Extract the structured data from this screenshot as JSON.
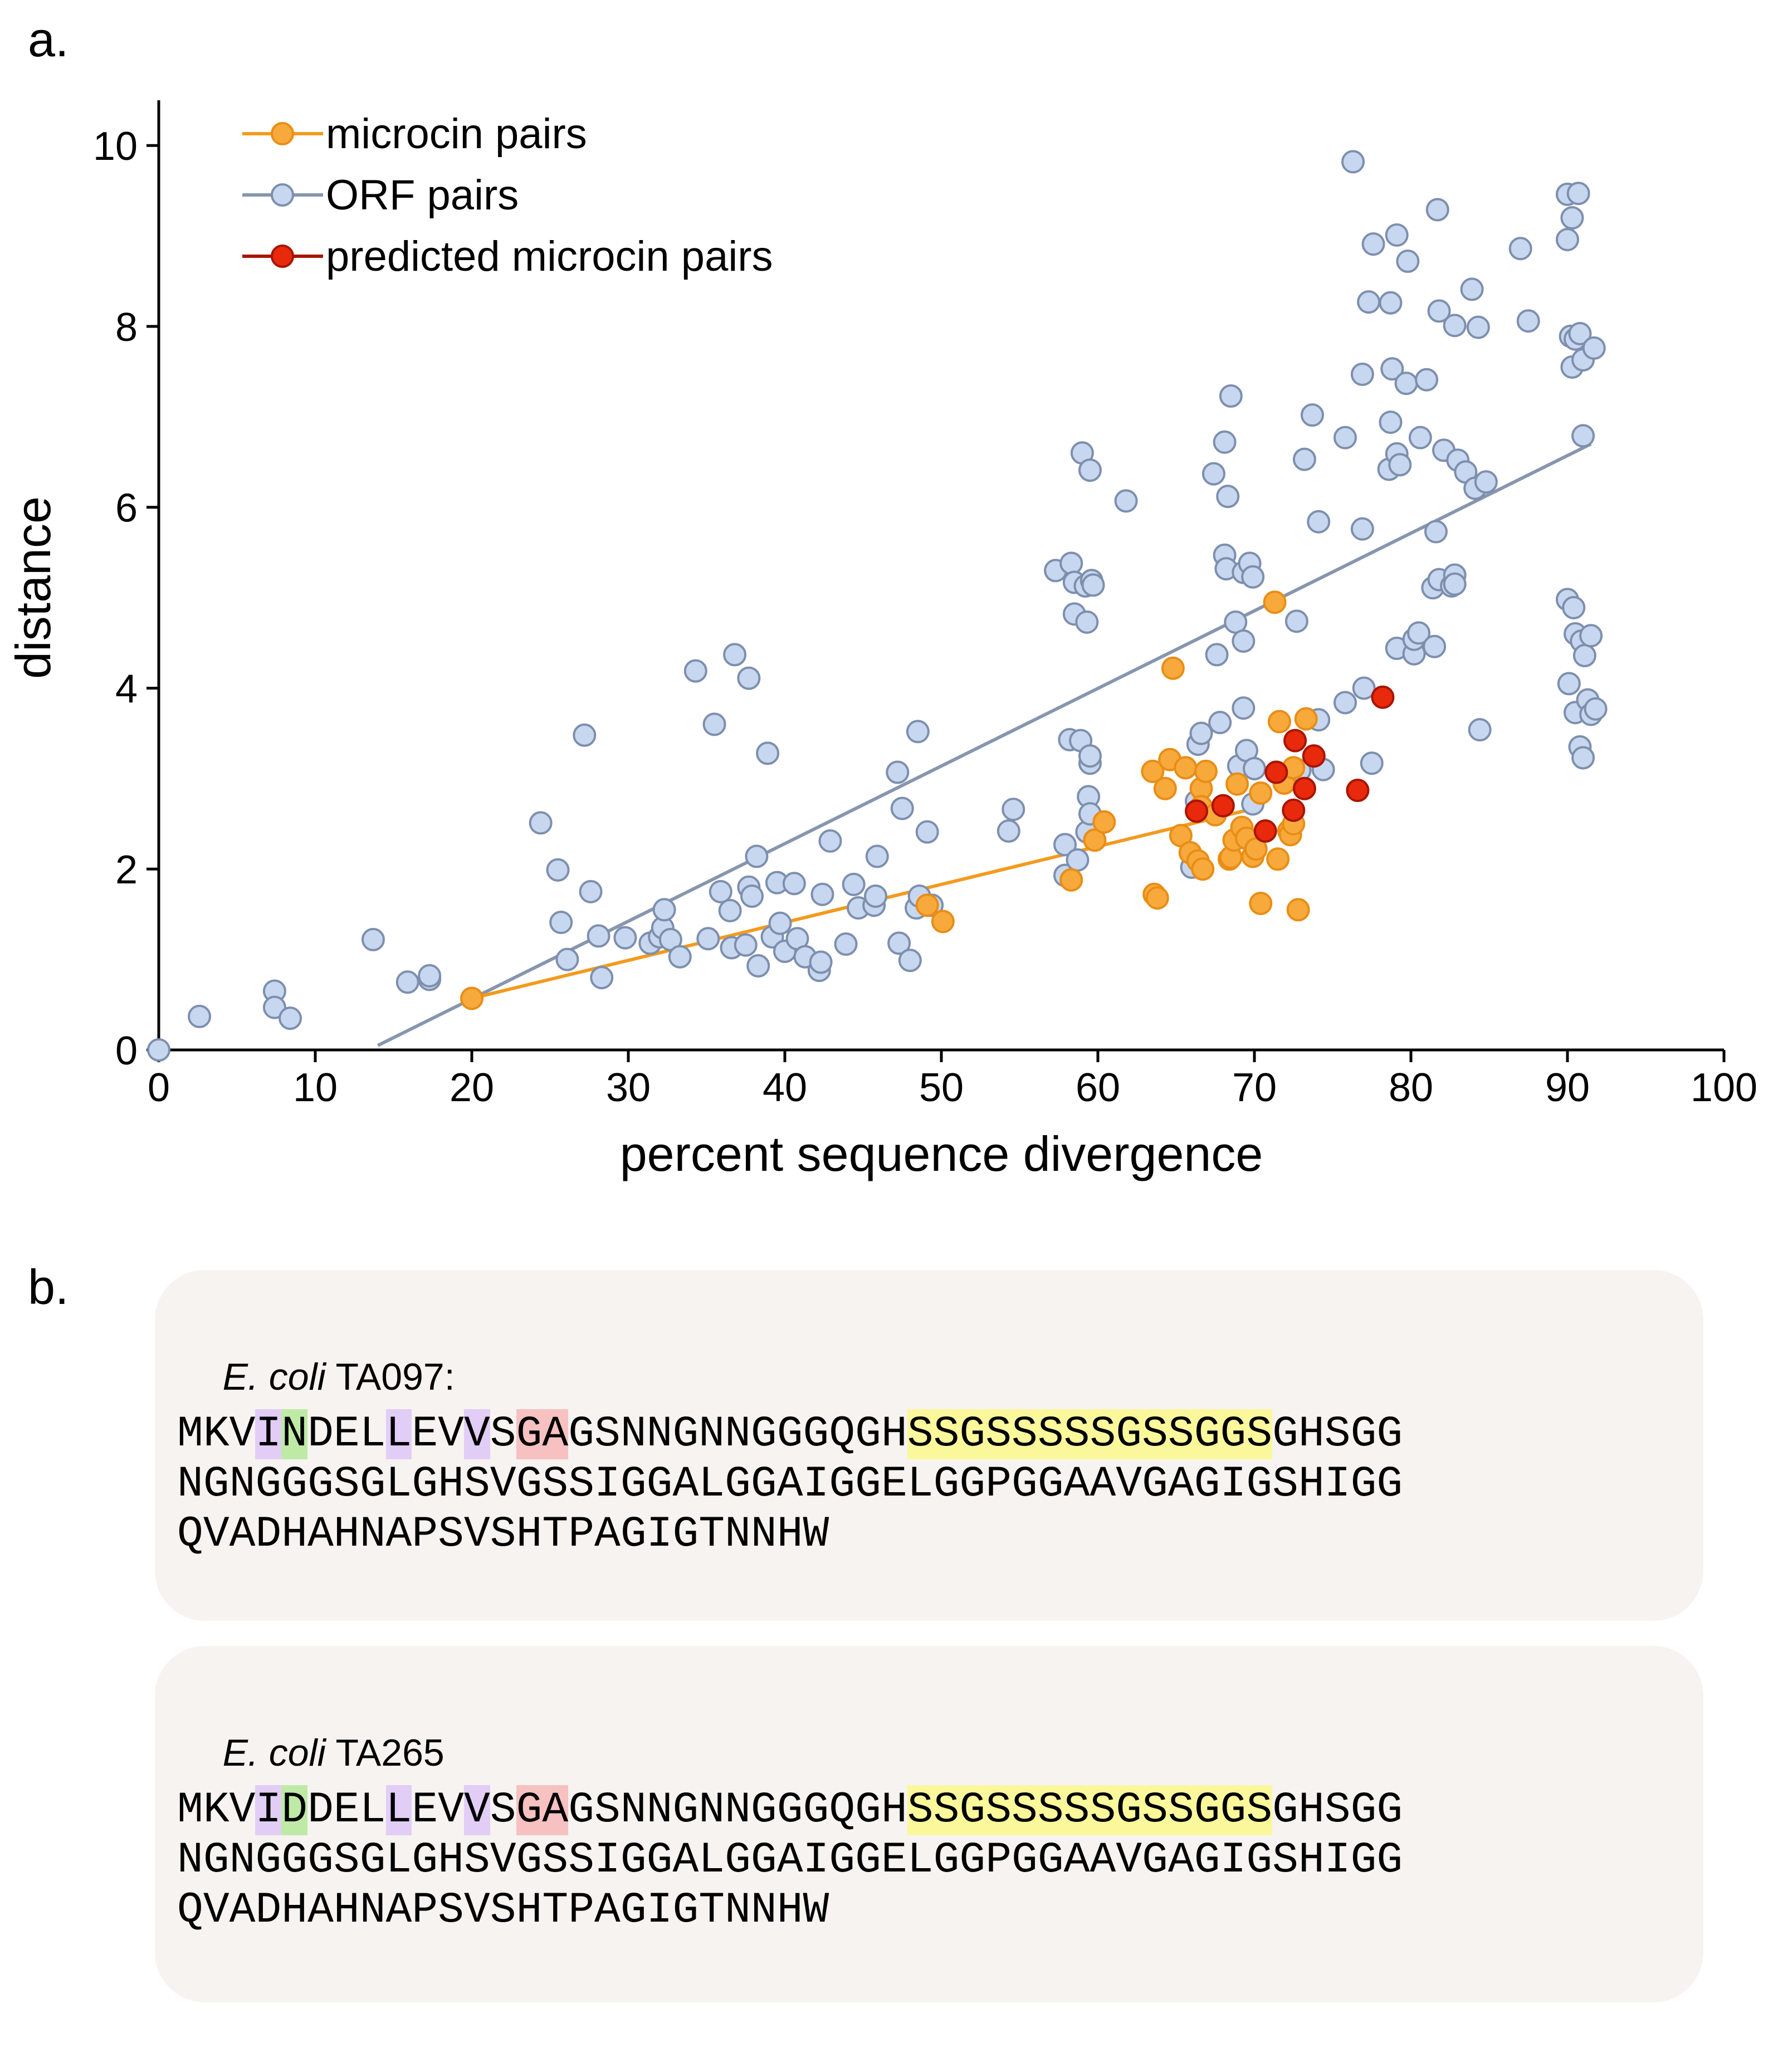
{
  "panels": {
    "a": "a.",
    "b": "b."
  },
  "chart_data": {
    "type": "scatter",
    "xlabel": "percent sequence divergence",
    "ylabel": "distance",
    "xlim": [
      0,
      100
    ],
    "ylim": [
      0,
      10.5
    ],
    "xticks": [
      0,
      10,
      20,
      30,
      40,
      50,
      60,
      70,
      80,
      90,
      100
    ],
    "yticks": [
      0,
      2,
      4,
      6,
      8,
      10
    ],
    "grid": false,
    "legend_position": "top-left",
    "series": [
      {
        "name": "ORF pairs",
        "color": "#c7d7f0",
        "edge": "#7d8fad",
        "fit": {
          "x": [
            14,
            91.5
          ],
          "y": [
            0.05,
            6.7
          ],
          "color": "#8796ae"
        },
        "points": [
          [
            0,
            0
          ],
          [
            2.6,
            0.37
          ],
          [
            7.4,
            0.65
          ],
          [
            7.4,
            0.47
          ],
          [
            8.4,
            0.35
          ],
          [
            13.7,
            1.22
          ],
          [
            15.9,
            0.75
          ],
          [
            17.3,
            0.78
          ],
          [
            17.3,
            0.82
          ],
          [
            24.4,
            2.51
          ],
          [
            25.5,
            1.99
          ],
          [
            25.7,
            1.41
          ],
          [
            26.1,
            1.0
          ],
          [
            27.2,
            3.48
          ],
          [
            27.6,
            1.75
          ],
          [
            28.1,
            1.26
          ],
          [
            28.3,
            0.8
          ],
          [
            29.8,
            1.24
          ],
          [
            31.4,
            1.18
          ],
          [
            32.0,
            1.25
          ],
          [
            32.2,
            1.35
          ],
          [
            32.3,
            1.55
          ],
          [
            32.7,
            1.22
          ],
          [
            33.3,
            1.03
          ],
          [
            34.3,
            4.19
          ],
          [
            35.1,
            1.23
          ],
          [
            35.5,
            3.6
          ],
          [
            35.9,
            1.75
          ],
          [
            36.5,
            1.54
          ],
          [
            36.6,
            1.13
          ],
          [
            36.8,
            4.37
          ],
          [
            37.5,
            1.16
          ],
          [
            37.7,
            1.8
          ],
          [
            37.7,
            4.11
          ],
          [
            37.9,
            1.7
          ],
          [
            38.2,
            2.14
          ],
          [
            38.3,
            0.93
          ],
          [
            38.9,
            3.28
          ],
          [
            39.2,
            1.25
          ],
          [
            39.5,
            1.85
          ],
          [
            39.7,
            1.4
          ],
          [
            40.0,
            1.09
          ],
          [
            40.6,
            1.84
          ],
          [
            40.8,
            1.23
          ],
          [
            41.3,
            1.03
          ],
          [
            42.2,
            0.88
          ],
          [
            42.3,
            0.97
          ],
          [
            42.4,
            1.72
          ],
          [
            42.9,
            2.31
          ],
          [
            43.9,
            1.17
          ],
          [
            44.4,
            1.83
          ],
          [
            44.7,
            1.57
          ],
          [
            45.7,
            1.6
          ],
          [
            45.8,
            1.7
          ],
          [
            45.9,
            2.14
          ],
          [
            47.2,
            3.07
          ],
          [
            47.3,
            1.18
          ],
          [
            47.5,
            2.67
          ],
          [
            48.0,
            0.99
          ],
          [
            48.4,
            1.57
          ],
          [
            48.5,
            3.52
          ],
          [
            48.6,
            1.7
          ],
          [
            49.1,
            2.41
          ],
          [
            49.4,
            1.6
          ],
          [
            54.3,
            2.42
          ],
          [
            54.6,
            2.66
          ],
          [
            57.3,
            5.3
          ],
          [
            57.9,
            2.27
          ],
          [
            57.9,
            1.93
          ],
          [
            58.2,
            3.43
          ],
          [
            58.3,
            5.38
          ],
          [
            58.5,
            4.82
          ],
          [
            58.5,
            5.17
          ],
          [
            58.7,
            2.1
          ],
          [
            58.9,
            3.42
          ],
          [
            59.0,
            6.6
          ],
          [
            59.2,
            5.13
          ],
          [
            59.3,
            4.73
          ],
          [
            59.3,
            2.41
          ],
          [
            59.4,
            2.8
          ],
          [
            59.5,
            3.17
          ],
          [
            59.5,
            3.25
          ],
          [
            59.5,
            6.41
          ],
          [
            59.6,
            5.19
          ],
          [
            59.7,
            5.14
          ],
          [
            59.5,
            2.61
          ],
          [
            61.8,
            6.07
          ],
          [
            66.0,
            2.02
          ],
          [
            66.3,
            2.75
          ],
          [
            66.4,
            3.38
          ],
          [
            66.6,
            3.5
          ],
          [
            67.4,
            6.37
          ],
          [
            67.6,
            4.37
          ],
          [
            67.8,
            3.62
          ],
          [
            68.1,
            5.47
          ],
          [
            68.1,
            6.72
          ],
          [
            68.2,
            5.32
          ],
          [
            68.3,
            6.12
          ],
          [
            68.5,
            7.23
          ],
          [
            68.8,
            4.73
          ],
          [
            69.0,
            3.14
          ],
          [
            69.3,
            5.28
          ],
          [
            69.3,
            4.52
          ],
          [
            69.3,
            3.78
          ],
          [
            69.5,
            3.31
          ],
          [
            69.7,
            5.38
          ],
          [
            69.9,
            5.23
          ],
          [
            69.9,
            2.72
          ],
          [
            70.0,
            3.11
          ],
          [
            72.7,
            4.74
          ],
          [
            72.9,
            3.09
          ],
          [
            73.2,
            6.53
          ],
          [
            73.7,
            7.02
          ],
          [
            74.1,
            5.84
          ],
          [
            74.1,
            3.65
          ],
          [
            74.4,
            3.1
          ],
          [
            75.8,
            3.84
          ],
          [
            75.8,
            6.77
          ],
          [
            76.3,
            9.82
          ],
          [
            76.9,
            5.76
          ],
          [
            76.9,
            7.47
          ],
          [
            77.0,
            4.0
          ],
          [
            77.3,
            8.27
          ],
          [
            77.6,
            8.91
          ],
          [
            77.5,
            3.17
          ],
          [
            78.6,
            6.42
          ],
          [
            78.7,
            6.94
          ],
          [
            78.7,
            8.26
          ],
          [
            78.8,
            7.53
          ],
          [
            79.1,
            4.44
          ],
          [
            79.1,
            6.59
          ],
          [
            79.1,
            9.01
          ],
          [
            79.3,
            6.47
          ],
          [
            79.7,
            7.37
          ],
          [
            79.8,
            8.72
          ],
          [
            80.2,
            4.38
          ],
          [
            80.2,
            4.54
          ],
          [
            80.5,
            4.61
          ],
          [
            80.6,
            6.77
          ],
          [
            81.0,
            7.41
          ],
          [
            81.4,
            5.11
          ],
          [
            81.5,
            4.46
          ],
          [
            81.6,
            5.73
          ],
          [
            81.7,
            9.29
          ],
          [
            81.8,
            8.17
          ],
          [
            81.8,
            5.2
          ],
          [
            82.1,
            6.63
          ],
          [
            82.6,
            5.13
          ],
          [
            82.8,
            5.25
          ],
          [
            82.8,
            8.01
          ],
          [
            82.8,
            5.15
          ],
          [
            83.0,
            6.52
          ],
          [
            83.5,
            6.39
          ],
          [
            83.9,
            8.41
          ],
          [
            84.1,
            6.21
          ],
          [
            84.3,
            7.99
          ],
          [
            84.4,
            3.54
          ],
          [
            84.8,
            6.28
          ],
          [
            87.0,
            8.86
          ],
          [
            87.5,
            8.06
          ],
          [
            90.0,
            9.46
          ],
          [
            90.0,
            8.96
          ],
          [
            90.0,
            4.98
          ],
          [
            90.1,
            4.05
          ],
          [
            90.2,
            7.89
          ],
          [
            90.3,
            9.2
          ],
          [
            90.3,
            7.55
          ],
          [
            90.4,
            4.89
          ],
          [
            90.5,
            4.6
          ],
          [
            90.5,
            3.73
          ],
          [
            90.5,
            7.86
          ],
          [
            90.7,
            9.47
          ],
          [
            90.8,
            7.92
          ],
          [
            90.8,
            3.35
          ],
          [
            90.9,
            4.52
          ],
          [
            91.0,
            7.63
          ],
          [
            91.0,
            3.23
          ],
          [
            91.0,
            6.79
          ],
          [
            91.1,
            4.36
          ],
          [
            91.3,
            3.87
          ],
          [
            91.5,
            4.58
          ],
          [
            91.5,
            3.71
          ],
          [
            91.7,
            7.76
          ],
          [
            91.8,
            3.77
          ]
        ]
      },
      {
        "name": "microcin pairs",
        "color": "#f8a93c",
        "edge": "#e98d15",
        "fit": {
          "x": [
            20,
            70
          ],
          "y": [
            0.57,
            2.67
          ],
          "color": "#f49a1e"
        },
        "points": [
          [
            20.0,
            0.57
          ],
          [
            49.1,
            1.6
          ],
          [
            50.1,
            1.42
          ],
          [
            58.3,
            1.88
          ],
          [
            59.8,
            2.32
          ],
          [
            60.4,
            2.52
          ],
          [
            63.5,
            3.08
          ],
          [
            63.6,
            1.72
          ],
          [
            63.8,
            1.68
          ],
          [
            64.3,
            2.89
          ],
          [
            64.6,
            3.21
          ],
          [
            64.8,
            4.22
          ],
          [
            65.3,
            2.37
          ],
          [
            65.6,
            3.12
          ],
          [
            65.9,
            2.18
          ],
          [
            66.4,
            2.09
          ],
          [
            66.6,
            2.89
          ],
          [
            66.6,
            2.69
          ],
          [
            66.7,
            2.0
          ],
          [
            66.9,
            3.08
          ],
          [
            67.5,
            2.6
          ],
          [
            68.4,
            2.11
          ],
          [
            68.5,
            2.13
          ],
          [
            68.7,
            2.32
          ],
          [
            68.9,
            2.94
          ],
          [
            69.2,
            2.46
          ],
          [
            69.5,
            2.34
          ],
          [
            69.9,
            2.14
          ],
          [
            70.1,
            2.22
          ],
          [
            70.4,
            1.62
          ],
          [
            70.4,
            2.84
          ],
          [
            71.3,
            4.95
          ],
          [
            71.5,
            2.11
          ],
          [
            71.6,
            3.63
          ],
          [
            71.9,
            2.95
          ],
          [
            72.2,
            2.42
          ],
          [
            72.3,
            2.38
          ],
          [
            72.5,
            3.12
          ],
          [
            72.5,
            2.5
          ],
          [
            72.8,
            1.55
          ],
          [
            73.3,
            3.66
          ]
        ]
      },
      {
        "name": "predicted microcin pairs",
        "color": "#e8290b",
        "edge": "#a81400",
        "points": [
          [
            66.3,
            2.64
          ],
          [
            68.0,
            2.7
          ],
          [
            70.7,
            2.42
          ],
          [
            71.4,
            3.07
          ],
          [
            72.5,
            2.65
          ],
          [
            72.6,
            3.42
          ],
          [
            73.2,
            2.89
          ],
          [
            73.8,
            3.25
          ],
          [
            76.6,
            2.87
          ],
          [
            78.2,
            3.9
          ]
        ]
      }
    ]
  },
  "sequences": [
    {
      "species": "E. coli",
      "strain": "TA097:",
      "lines": [
        "MKVINDELLEVVSGAGSNNGNNGGGQGHSSGSSSSSGSSGGSGHSGG",
        "NGNGGGSGLGHSVGSSIGGALGGAIGGELGGPGGAAVGAGIGSHIGG",
        "QVADHAHNAPSVSHTPAGIGTNNHW"
      ],
      "highlights": [
        {
          "line": 0,
          "start": 3,
          "end": 4,
          "color": "#e2cdf7"
        },
        {
          "line": 0,
          "start": 4,
          "end": 5,
          "color": "#bfeaa6"
        },
        {
          "line": 0,
          "start": 8,
          "end": 9,
          "color": "#e2cdf7"
        },
        {
          "line": 0,
          "start": 11,
          "end": 12,
          "color": "#e2cdf7"
        },
        {
          "line": 0,
          "start": 13,
          "end": 15,
          "color": "#f7c1c1"
        },
        {
          "line": 0,
          "start": 28,
          "end": 42,
          "color": "#fbf89c"
        }
      ]
    },
    {
      "species": "E. coli",
      "strain": "TA265",
      "lines": [
        "MKVIDDELLEVVSGAGSNNGNNGGGQGHSSGSSSSSGSSGGSGHSGG",
        "NGNGGGSGLGHSVGSSIGGALGGAIGGELGGPGGAAVGAGIGSHIGG",
        "QVADHAHNAPSVSHTPAGIGTNNHW"
      ],
      "highlights": [
        {
          "line": 0,
          "start": 3,
          "end": 4,
          "color": "#e2cdf7"
        },
        {
          "line": 0,
          "start": 4,
          "end": 5,
          "color": "#bfeaa6"
        },
        {
          "line": 0,
          "start": 8,
          "end": 9,
          "color": "#e2cdf7"
        },
        {
          "line": 0,
          "start": 11,
          "end": 12,
          "color": "#e2cdf7"
        },
        {
          "line": 0,
          "start": 13,
          "end": 15,
          "color": "#f7c1c1"
        },
        {
          "line": 0,
          "start": 28,
          "end": 42,
          "color": "#fbf89c"
        }
      ]
    }
  ]
}
